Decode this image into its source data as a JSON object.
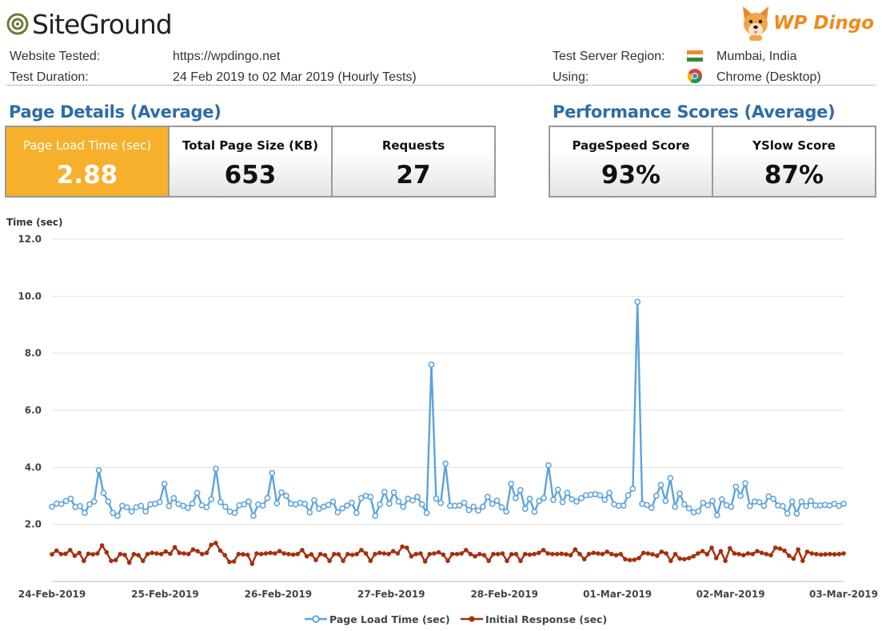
{
  "header": {
    "brand_left": "SiteGround",
    "brand_right": "WP Dingo",
    "website_label": "Website Tested:",
    "website_value": "https://wpdingo.net",
    "duration_label": "Test Duration:",
    "duration_value": "24 Feb 2019 to 02 Mar 2019 (Hourly Tests)",
    "region_label": "Test Server Region:",
    "region_value": "Mumbai, India",
    "using_label": "Using:",
    "using_value": "Chrome (Desktop)"
  },
  "page_details": {
    "title": "Page Details (Average)",
    "load_time_label": "Page Load Time (sec)",
    "load_time_value": "2.88",
    "size_label": "Total Page Size (KB)",
    "size_value": "653",
    "requests_label": "Requests",
    "requests_value": "27"
  },
  "performance": {
    "title": "Performance Scores (Average)",
    "pagespeed_label": "PageSpeed Score",
    "pagespeed_value": "93%",
    "yslow_label": "YSlow Score",
    "yslow_value": "87%"
  },
  "colors": {
    "highlight": "#f7b02c",
    "title_blue": "#2d6ca8",
    "series_load": "#5ba3dc",
    "series_response": "#a6300c"
  },
  "chart_data": {
    "type": "line",
    "ylabel": "Time (sec)",
    "ylim": [
      0,
      12
    ],
    "yticks": [
      "2.0",
      "4.0",
      "6.0",
      "8.0",
      "10.0",
      "12.0"
    ],
    "xlabels": [
      "24-Feb-2019",
      "25-Feb-2019",
      "26-Feb-2019",
      "27-Feb-2019",
      "28-Feb-2019",
      "01-Mar-2019",
      "02-Mar-2019",
      "03-Mar-2019"
    ],
    "grid": "y-major",
    "legend": "bottom",
    "series": [
      {
        "name": "Page Load Time (sec)",
        "color": "#5ba3dc",
        "values": [
          2.62,
          2.73,
          2.71,
          2.82,
          2.9,
          2.61,
          2.64,
          2.4,
          2.7,
          2.8,
          3.9,
          3.1,
          2.8,
          2.4,
          2.3,
          2.65,
          2.6,
          2.45,
          2.6,
          2.65,
          2.45,
          2.7,
          2.72,
          2.78,
          3.42,
          2.64,
          2.92,
          2.71,
          2.65,
          2.58,
          2.73,
          3.1,
          2.67,
          2.6,
          2.88,
          3.95,
          2.78,
          2.62,
          2.45,
          2.4,
          2.67,
          2.7,
          2.8,
          2.3,
          2.7,
          2.66,
          2.92,
          3.8,
          2.74,
          3.12,
          3.0,
          2.72,
          2.7,
          2.75,
          2.72,
          2.42,
          2.85,
          2.55,
          2.62,
          2.68,
          2.8,
          2.42,
          2.56,
          2.66,
          2.76,
          2.4,
          2.92,
          3.0,
          2.96,
          2.3,
          2.7,
          3.14,
          2.72,
          3.12,
          2.8,
          2.62,
          2.9,
          2.84,
          2.96,
          2.7,
          2.4,
          7.6,
          2.9,
          2.75,
          4.13,
          2.65,
          2.65,
          2.66,
          2.76,
          2.5,
          2.62,
          2.48,
          2.62,
          2.96,
          2.72,
          2.83,
          2.6,
          2.45,
          3.42,
          2.92,
          3.2,
          2.55,
          2.9,
          2.44,
          2.82,
          2.92,
          4.07,
          2.86,
          3.22,
          2.78,
          3.1,
          2.88,
          2.8,
          2.92,
          3.02,
          3.04,
          3.06,
          3.02,
          2.86,
          3.1,
          2.7,
          2.65,
          2.66,
          3.02,
          3.25,
          9.8,
          2.72,
          2.68,
          2.58,
          3.0,
          3.38,
          2.82,
          3.62,
          2.62,
          3.08,
          2.7,
          2.56,
          2.42,
          2.46,
          2.76,
          2.67,
          2.82,
          2.32,
          2.88,
          2.67,
          2.62,
          3.32,
          3.0,
          3.44,
          2.64,
          2.8,
          2.78,
          2.65,
          2.98,
          2.9,
          2.66,
          2.64,
          2.38,
          2.8,
          2.38,
          2.8,
          2.64,
          2.82,
          2.66,
          2.67,
          2.68,
          2.66,
          2.72,
          2.65,
          2.72
        ]
      },
      {
        "name": "Initial Response (sec)",
        "color": "#a6300c",
        "values": [
          0.95,
          1.08,
          0.96,
          0.97,
          1.1,
          0.9,
          1.0,
          0.72,
          0.97,
          0.95,
          0.98,
          1.26,
          1.02,
          0.72,
          0.75,
          0.96,
          0.93,
          0.66,
          0.96,
          0.92,
          0.72,
          0.96,
          1.0,
          0.98,
          0.96,
          1.05,
          0.97,
          1.2,
          1.0,
          0.98,
          0.96,
          1.12,
          1.06,
          0.96,
          1.0,
          1.28,
          1.35,
          1.08,
          0.92,
          0.68,
          0.7,
          0.96,
          0.95,
          0.93,
          0.62,
          0.98,
          0.96,
          0.98,
          1.0,
          0.98,
          1.06,
          0.98,
          0.96,
          0.94,
          0.96,
          1.1,
          0.88,
          0.95,
          0.75,
          0.96,
          0.92,
          0.72,
          0.96,
          0.95,
          0.72,
          0.96,
          0.93,
          0.96,
          1.1,
          0.98,
          0.72,
          0.96,
          1.0,
          0.98,
          0.96,
          1.06,
          0.98,
          1.22,
          1.18,
          0.88,
          0.96,
          0.98,
          0.7,
          0.96,
          0.98,
          1.02,
          0.94,
          0.72,
          0.96,
          0.96,
          0.98,
          1.1,
          0.96,
          0.88,
          0.96,
          0.92,
          0.72,
          0.96,
          0.96,
          0.98,
          0.72,
          0.95,
          0.96,
          0.72,
          0.96,
          0.94,
          0.96,
          1.0,
          1.1,
          0.98,
          0.96,
          0.96,
          0.97,
          0.95,
          0.92,
          1.12,
          0.96,
          0.78,
          0.96,
          1.0,
          0.98,
          0.96,
          1.04,
          0.96,
          0.92,
          0.96,
          0.78,
          0.75,
          0.76,
          0.82,
          1.0,
          0.98,
          0.95,
          0.9,
          1.04,
          0.98,
          0.72,
          0.96,
          0.8,
          0.78,
          0.82,
          0.88,
          0.98,
          1.06,
          0.95,
          1.18,
          0.82,
          1.06,
          0.72,
          1.16,
          0.98,
          0.96,
          0.92,
          0.98,
          0.96,
          1.06,
          1.0,
          0.96,
          0.92,
          1.18,
          1.15,
          1.08,
          0.9,
          0.8,
          1.12,
          0.72,
          1.04,
          0.98,
          0.96,
          0.94,
          0.95,
          0.96,
          0.95,
          0.96,
          0.98
        ]
      }
    ]
  }
}
